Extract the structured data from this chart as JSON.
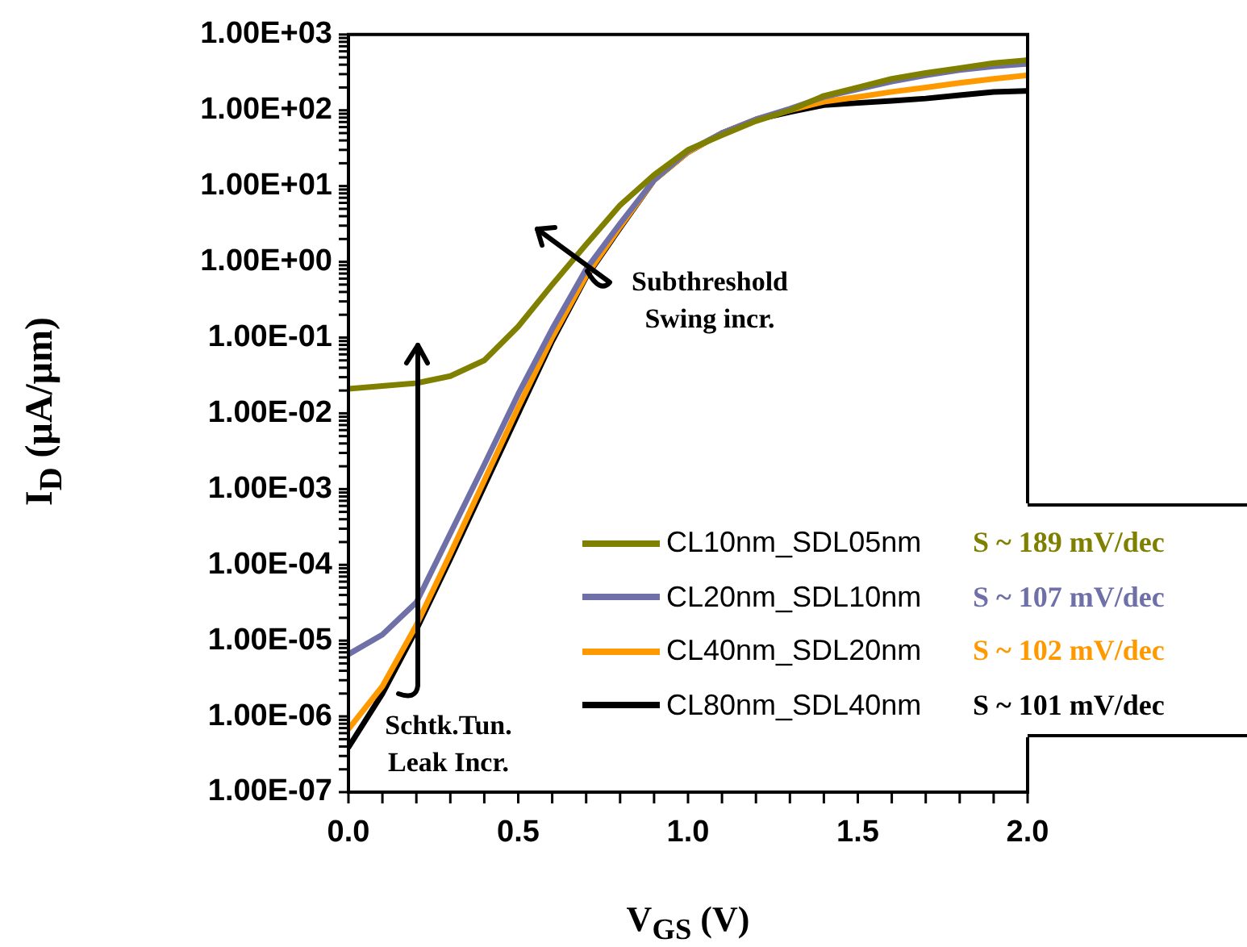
{
  "chart_data": {
    "type": "line",
    "xlabel": "V$_{GS}$ (V)",
    "ylabel": "I$_{D}$ (μA/μm)",
    "x": [
      0,
      0.1,
      0.2,
      0.3,
      0.4,
      0.5,
      0.6,
      0.7,
      0.8,
      0.9,
      1.0,
      1.1,
      1.2,
      1.3,
      1.4,
      1.5,
      1.6,
      1.7,
      1.8,
      1.9,
      2.0
    ],
    "series": [
      {
        "name": "CL10nm_SDL05nm",
        "color": "#808000",
        "values": [
          0.021,
          0.023,
          0.025,
          0.031,
          0.05,
          0.14,
          0.5,
          1.7,
          5.6,
          14,
          30,
          47,
          72,
          100,
          155,
          200,
          260,
          310,
          360,
          420,
          460
        ]
      },
      {
        "name": "CL20nm_SDL10nm",
        "color": "#7070a8",
        "values": [
          6.6e-06,
          1.2e-05,
          3.2e-05,
          0.00026,
          0.0021,
          0.018,
          0.13,
          0.8,
          3.2,
          12,
          29,
          50,
          76,
          105,
          150,
          190,
          240,
          290,
          340,
          380,
          410
        ]
      },
      {
        "name": "CL40nm_SDL20nm",
        "color": "#ff9900",
        "values": [
          6.8e-07,
          2.5e-06,
          1.6e-05,
          0.00014,
          0.0013,
          0.012,
          0.1,
          0.65,
          2.9,
          12,
          28,
          50,
          76,
          100,
          130,
          150,
          175,
          200,
          230,
          260,
          290
        ]
      },
      {
        "name": "CL80nm_SDL40nm",
        "color": "#000000",
        "values": [
          3.9e-07,
          2e-06,
          1.4e-05,
          0.00012,
          0.0011,
          0.01,
          0.09,
          0.63,
          2.8,
          12,
          28,
          50,
          75,
          95,
          117,
          125,
          133,
          143,
          158,
          175,
          180
        ]
      }
    ],
    "log": "y",
    "xlim": [
      0,
      2
    ],
    "ylim": [
      1e-07,
      1000
    ],
    "xticks": [
      {
        "value": 0,
        "label": "0.0"
      },
      {
        "value": 0.1,
        "label": null
      },
      {
        "value": 0.2,
        "label": null
      },
      {
        "value": 0.3,
        "label": null
      },
      {
        "value": 0.4,
        "label": null
      },
      {
        "value": 0.5,
        "label": "0.5"
      },
      {
        "value": 0.6,
        "label": null
      },
      {
        "value": 0.7,
        "label": null
      },
      {
        "value": 0.8,
        "label": null
      },
      {
        "value": 0.9,
        "label": null
      },
      {
        "value": 1,
        "label": "1.0"
      },
      {
        "value": 1.1,
        "label": null
      },
      {
        "value": 1.2,
        "label": null
      },
      {
        "value": 1.3,
        "label": null
      },
      {
        "value": 1.4,
        "label": null
      },
      {
        "value": 1.5,
        "label": "1.5"
      },
      {
        "value": 1.6,
        "label": null
      },
      {
        "value": 1.7,
        "label": null
      },
      {
        "value": 1.8,
        "label": null
      },
      {
        "value": 1.9,
        "label": null
      },
      {
        "value": 2,
        "label": "2.0"
      }
    ],
    "yticks": [
      {
        "value": 1e-07,
        "label": "1.00E-07"
      },
      {
        "value": 2e-07,
        "label": null
      },
      {
        "value": 3e-07,
        "label": null
      },
      {
        "value": 4e-07,
        "label": null
      },
      {
        "value": 5e-07,
        "label": null
      },
      {
        "value": 6e-07,
        "label": null
      },
      {
        "value": 7e-07,
        "label": null
      },
      {
        "value": 8e-07,
        "label": null
      },
      {
        "value": 9e-07,
        "label": null
      },
      {
        "value": 1e-06,
        "label": "1.00E-06"
      },
      {
        "value": 2e-06,
        "label": null
      },
      {
        "value": 3e-06,
        "label": null
      },
      {
        "value": 4e-06,
        "label": null
      },
      {
        "value": 5e-06,
        "label": null
      },
      {
        "value": 6e-06,
        "label": null
      },
      {
        "value": 7e-06,
        "label": null
      },
      {
        "value": 8e-06,
        "label": null
      },
      {
        "value": 9e-06,
        "label": null
      },
      {
        "value": 1e-05,
        "label": "1.00E-05"
      },
      {
        "value": 2e-05,
        "label": null
      },
      {
        "value": 3e-05,
        "label": null
      },
      {
        "value": 4e-05,
        "label": null
      },
      {
        "value": 5e-05,
        "label": null
      },
      {
        "value": 6e-05,
        "label": null
      },
      {
        "value": 7e-05,
        "label": null
      },
      {
        "value": 8e-05,
        "label": null
      },
      {
        "value": 9e-05,
        "label": null
      },
      {
        "value": 0.0001,
        "label": "1.00E-04"
      },
      {
        "value": 0.0002,
        "label": null
      },
      {
        "value": 0.0003,
        "label": null
      },
      {
        "value": 0.0004,
        "label": null
      },
      {
        "value": 0.0005,
        "label": null
      },
      {
        "value": 0.0006,
        "label": null
      },
      {
        "value": 0.0007,
        "label": null
      },
      {
        "value": 0.0008,
        "label": null
      },
      {
        "value": 0.0009,
        "label": null
      },
      {
        "value": 0.001,
        "label": "1.00E-03"
      },
      {
        "value": 0.002,
        "label": null
      },
      {
        "value": 0.003,
        "label": null
      },
      {
        "value": 0.004,
        "label": null
      },
      {
        "value": 0.005,
        "label": null
      },
      {
        "value": 0.006,
        "label": null
      },
      {
        "value": 0.007,
        "label": null
      },
      {
        "value": 0.008,
        "label": null
      },
      {
        "value": 0.009,
        "label": null
      },
      {
        "value": 0.01,
        "label": "1.00E-02"
      },
      {
        "value": 0.02,
        "label": null
      },
      {
        "value": 0.03,
        "label": null
      },
      {
        "value": 0.04,
        "label": null
      },
      {
        "value": 0.05,
        "label": null
      },
      {
        "value": 0.06,
        "label": null
      },
      {
        "value": 0.07,
        "label": null
      },
      {
        "value": 0.08,
        "label": null
      },
      {
        "value": 0.09,
        "label": null
      },
      {
        "value": 0.1,
        "label": "1.00E-01"
      },
      {
        "value": 0.2,
        "label": null
      },
      {
        "value": 0.3,
        "label": null
      },
      {
        "value": 0.4,
        "label": null
      },
      {
        "value": 0.5,
        "label": null
      },
      {
        "value": 0.6,
        "label": null
      },
      {
        "value": 0.7,
        "label": null
      },
      {
        "value": 0.8,
        "label": null
      },
      {
        "value": 0.9,
        "label": null
      },
      {
        "value": 1,
        "label": "1.00E+00"
      },
      {
        "value": 2,
        "label": null
      },
      {
        "value": 3,
        "label": null
      },
      {
        "value": 4,
        "label": null
      },
      {
        "value": 5,
        "label": null
      },
      {
        "value": 6,
        "label": null
      },
      {
        "value": 7,
        "label": null
      },
      {
        "value": 8,
        "label": null
      },
      {
        "value": 9,
        "label": null
      },
      {
        "value": 10,
        "label": "1.00E+01"
      },
      {
        "value": 20,
        "label": null
      },
      {
        "value": 30,
        "label": null
      },
      {
        "value": 40,
        "label": null
      },
      {
        "value": 50,
        "label": null
      },
      {
        "value": 60,
        "label": null
      },
      {
        "value": 70,
        "label": null
      },
      {
        "value": 80,
        "label": null
      },
      {
        "value": 90,
        "label": null
      },
      {
        "value": 100,
        "label": "1.00E+02"
      },
      {
        "value": 200,
        "label": null
      },
      {
        "value": 300,
        "label": null
      },
      {
        "value": 400,
        "label": null
      },
      {
        "value": 500,
        "label": null
      },
      {
        "value": 600,
        "label": null
      },
      {
        "value": 700,
        "label": null
      },
      {
        "value": 800,
        "label": null
      },
      {
        "value": 900,
        "label": null
      },
      {
        "value": 1000,
        "label": "1.00E+03"
      }
    ],
    "grid": false,
    "legend": "bottom right",
    "marker": "none",
    "line_style": "solid",
    "annotations": [
      "Subthreshold Swing incr.",
      "Schtk.Tun. Leak Incr.",
      "S ~ 189 mV/dec",
      "S ~ 107 mV/dec",
      "S ~ 102 mV/dec",
      "S ~ 101 mV/dec"
    ]
  }
}
